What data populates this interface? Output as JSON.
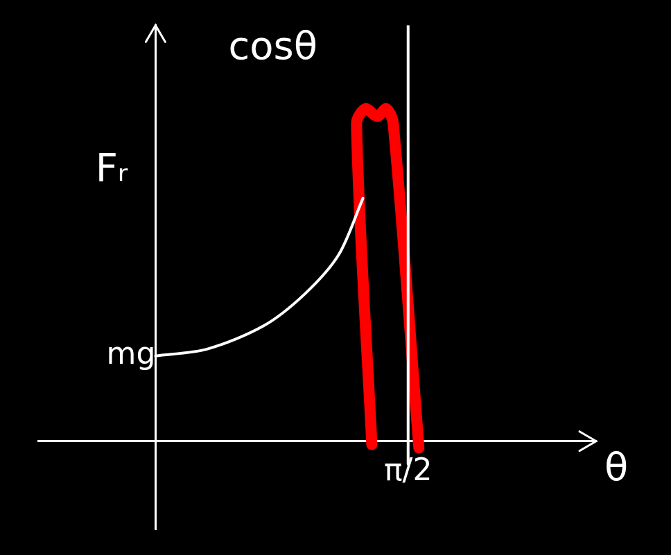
{
  "chart_data": {
    "type": "line",
    "x_label": "θ",
    "y_label": "Fᵣ",
    "annotations": [
      {
        "text": "cosθ",
        "x": 0.73,
        "y": 4.6
      }
    ],
    "xlim": [
      -0.73,
      2.74
    ],
    "ylim": [
      -1.04,
      4.88
    ],
    "xticks": [
      {
        "value": 1.5708,
        "label": "π/2"
      }
    ],
    "yticks": [
      {
        "value": 1,
        "label": "mg"
      }
    ],
    "grid": false,
    "series": [
      {
        "color": "#ffffff",
        "line_style": "solid",
        "x": [
          0,
          0.32,
          0.67,
          0.93,
          1.14,
          1.29
        ],
        "values": [
          1,
          1.08,
          1.35,
          1.73,
          2.19,
          2.85
        ]
      },
      {
        "color": "#ffffff",
        "line_style": "solid",
        "x": [
          1.5708,
          1.5708
        ],
        "values": [
          -0.27,
          4.88
        ]
      },
      {
        "color": "#ff0000",
        "line_style": "highlight",
        "x": [
          1.345,
          1.25,
          1.306,
          1.379,
          1.435,
          1.478,
          1.638
        ],
        "values": [
          -0.04,
          3.73,
          3.9,
          3.81,
          3.9,
          3.73,
          -0.08
        ]
      }
    ]
  }
}
